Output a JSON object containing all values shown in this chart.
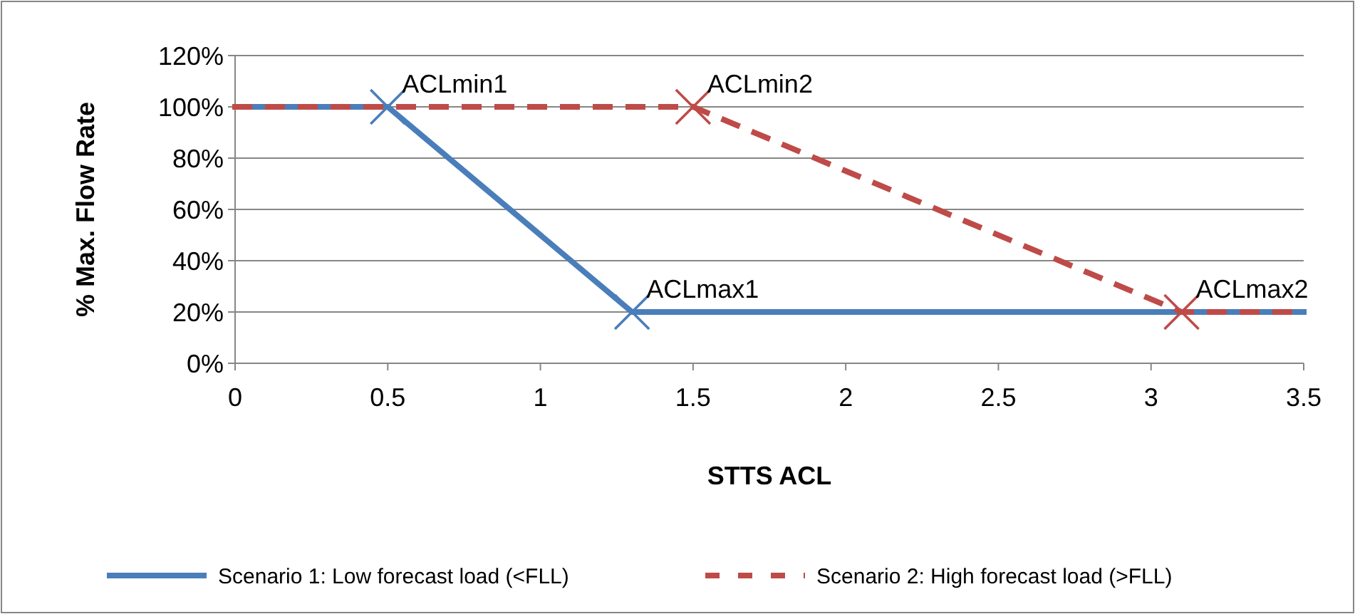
{
  "chart_data": {
    "type": "line",
    "xlabel": "STTS ACL",
    "ylabel": "% Max. Flow Rate",
    "xlim": [
      0,
      3.5
    ],
    "xticks": [
      0,
      0.5,
      1,
      1.5,
      2,
      2.5,
      3,
      3.5
    ],
    "ylim": [
      0,
      120
    ],
    "yticks": [
      {
        "value": 0,
        "label": "0%"
      },
      {
        "value": 20,
        "label": "20%"
      },
      {
        "value": 40,
        "label": "40%"
      },
      {
        "value": 60,
        "label": "60%"
      },
      {
        "value": 80,
        "label": "80%"
      },
      {
        "value": 100,
        "label": "100%"
      },
      {
        "value": 120,
        "label": "120%"
      }
    ],
    "grid": "y",
    "legend": "bottom",
    "series": [
      {
        "type": "scatter",
        "color": "#4a7ebb",
        "x": [
          0.5,
          1.3
        ],
        "values": [
          100,
          20
        ],
        "marker": "cross"
      },
      {
        "type": "scatter",
        "color": "#be4b48",
        "x": [
          1.5,
          3.1
        ],
        "values": [
          100,
          20
        ],
        "marker": "cross"
      },
      {
        "name": "Scenario 1: Low forecast load (<FLL)",
        "color": "#4a7ebb",
        "x": [
          0,
          0.5,
          1.3,
          3.5
        ],
        "values": [
          100,
          100,
          20,
          20
        ],
        "line_style": "solid",
        "marker": "none"
      },
      {
        "name": "Scenario 2: High forecast load (>FLL)",
        "color": "#be4b48",
        "x": [
          0,
          1.5,
          3.1,
          3.5
        ],
        "values": [
          100,
          100,
          20,
          20
        ],
        "line_style": "dashed",
        "marker": "none"
      }
    ],
    "annotations": [
      {
        "text": "ACLmin1",
        "x": 0.5,
        "y": 100
      },
      {
        "text": "ACLmin2",
        "x": 1.5,
        "y": 100
      },
      {
        "text": "ACLmax1",
        "x": 1.3,
        "y": 20
      },
      {
        "text": "ACLmax2",
        "x": 3.1,
        "y": 20
      }
    ]
  }
}
